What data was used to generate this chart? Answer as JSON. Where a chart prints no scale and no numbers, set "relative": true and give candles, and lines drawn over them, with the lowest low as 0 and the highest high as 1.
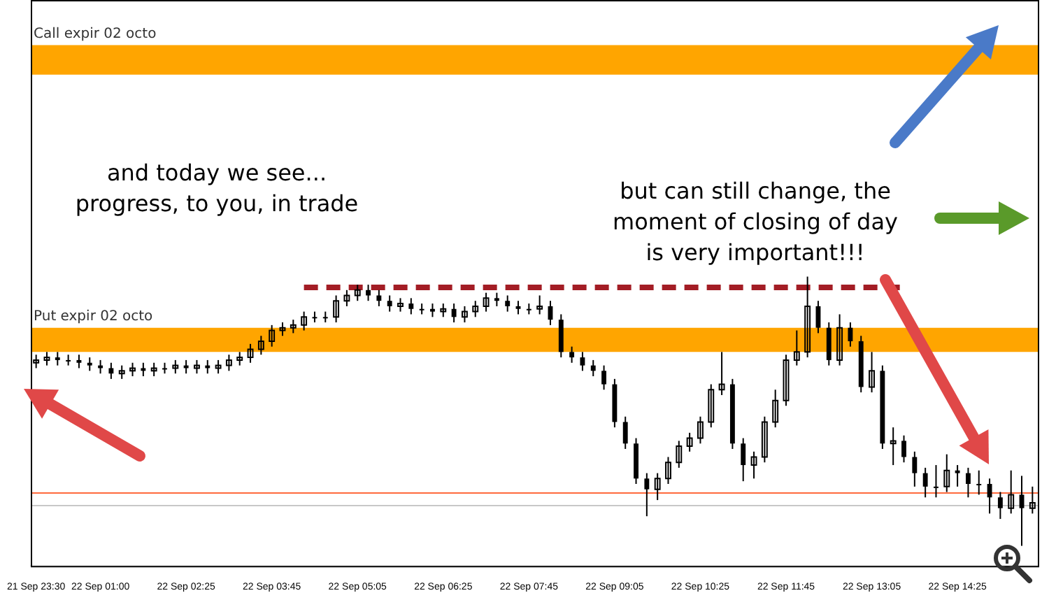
{
  "chart_data": {
    "type": "candlestick",
    "relative": true,
    "color": "#000000",
    "grid": false,
    "legend": false,
    "marker": "none",
    "categories": [
      "21 Sep 23:30",
      null,
      null,
      null,
      null,
      null,
      "22 Sep 01:00",
      null,
      null,
      null,
      null,
      null,
      null,
      null,
      "22 Sep 02:25",
      null,
      null,
      null,
      null,
      null,
      null,
      null,
      "22 Sep 03:45",
      null,
      null,
      null,
      null,
      null,
      null,
      null,
      "22 Sep 05:05",
      null,
      null,
      null,
      null,
      null,
      null,
      null,
      "22 Sep 06:25",
      null,
      null,
      null,
      null,
      null,
      null,
      null,
      "22 Sep 07:45",
      null,
      null,
      null,
      null,
      null,
      null,
      null,
      "22 Sep 09:05",
      null,
      null,
      null,
      null,
      null,
      null,
      null,
      "22 Sep 10:25",
      null,
      null,
      null,
      null,
      null,
      null,
      null,
      "22 Sep 11:45",
      null,
      null,
      null,
      null,
      null,
      null,
      null,
      "22 Sep 13:05",
      null,
      null,
      null,
      null,
      null,
      null,
      null,
      "22 Sep 14:25",
      null,
      null,
      null,
      null,
      null,
      null,
      null
    ],
    "ohlc": [
      [
        0.68,
        0.71,
        0.66,
        0.69
      ],
      [
        0.69,
        0.72,
        0.67,
        0.7
      ],
      [
        0.7,
        0.72,
        0.67,
        0.69
      ],
      [
        0.69,
        0.71,
        0.67,
        0.69
      ],
      [
        0.69,
        0.71,
        0.66,
        0.68
      ],
      [
        0.68,
        0.7,
        0.65,
        0.67
      ],
      [
        0.67,
        0.69,
        0.64,
        0.66
      ],
      [
        0.66,
        0.68,
        0.62,
        0.64
      ],
      [
        0.64,
        0.67,
        0.62,
        0.65
      ],
      [
        0.65,
        0.68,
        0.63,
        0.66
      ],
      [
        0.66,
        0.68,
        0.63,
        0.65
      ],
      [
        0.65,
        0.68,
        0.63,
        0.66
      ],
      [
        0.66,
        0.68,
        0.64,
        0.66
      ],
      [
        0.66,
        0.69,
        0.64,
        0.67
      ],
      [
        0.67,
        0.69,
        0.64,
        0.66
      ],
      [
        0.66,
        0.69,
        0.64,
        0.67
      ],
      [
        0.67,
        0.69,
        0.64,
        0.66
      ],
      [
        0.66,
        0.69,
        0.64,
        0.67
      ],
      [
        0.67,
        0.71,
        0.65,
        0.69
      ],
      [
        0.69,
        0.72,
        0.67,
        0.7
      ],
      [
        0.7,
        0.75,
        0.68,
        0.73
      ],
      [
        0.73,
        0.78,
        0.71,
        0.76
      ],
      [
        0.76,
        0.82,
        0.74,
        0.8
      ],
      [
        0.8,
        0.83,
        0.78,
        0.81
      ],
      [
        0.81,
        0.84,
        0.79,
        0.82
      ],
      [
        0.82,
        0.87,
        0.8,
        0.85
      ],
      [
        0.85,
        0.87,
        0.83,
        0.85
      ],
      [
        0.85,
        0.87,
        0.83,
        0.85
      ],
      [
        0.85,
        0.93,
        0.83,
        0.91
      ],
      [
        0.91,
        0.95,
        0.89,
        0.93
      ],
      [
        0.93,
        0.97,
        0.91,
        0.95
      ],
      [
        0.95,
        0.97,
        0.91,
        0.93
      ],
      [
        0.93,
        0.95,
        0.89,
        0.91
      ],
      [
        0.91,
        0.93,
        0.87,
        0.89
      ],
      [
        0.89,
        0.92,
        0.87,
        0.9
      ],
      [
        0.9,
        0.92,
        0.86,
        0.88
      ],
      [
        0.88,
        0.9,
        0.86,
        0.88
      ],
      [
        0.88,
        0.9,
        0.85,
        0.87
      ],
      [
        0.87,
        0.9,
        0.85,
        0.88
      ],
      [
        0.88,
        0.9,
        0.83,
        0.85
      ],
      [
        0.85,
        0.89,
        0.83,
        0.87
      ],
      [
        0.87,
        0.91,
        0.85,
        0.89
      ],
      [
        0.89,
        0.94,
        0.87,
        0.92
      ],
      [
        0.92,
        0.94,
        0.89,
        0.91
      ],
      [
        0.91,
        0.93,
        0.87,
        0.89
      ],
      [
        0.89,
        0.91,
        0.86,
        0.88
      ],
      [
        0.88,
        0.9,
        0.86,
        0.88
      ],
      [
        0.88,
        0.93,
        0.86,
        0.89
      ],
      [
        0.89,
        0.91,
        0.82,
        0.84
      ],
      [
        0.84,
        0.86,
        0.7,
        0.72
      ],
      [
        0.72,
        0.74,
        0.68,
        0.7
      ],
      [
        0.7,
        0.72,
        0.65,
        0.67
      ],
      [
        0.67,
        0.69,
        0.63,
        0.65
      ],
      [
        0.65,
        0.67,
        0.58,
        0.6
      ],
      [
        0.6,
        0.62,
        0.44,
        0.46
      ],
      [
        0.46,
        0.48,
        0.36,
        0.38
      ],
      [
        0.38,
        0.4,
        0.23,
        0.25
      ],
      [
        0.25,
        0.27,
        0.11,
        0.21
      ],
      [
        0.21,
        0.27,
        0.17,
        0.25
      ],
      [
        0.25,
        0.33,
        0.23,
        0.31
      ],
      [
        0.31,
        0.39,
        0.29,
        0.37
      ],
      [
        0.37,
        0.42,
        0.35,
        0.4
      ],
      [
        0.4,
        0.48,
        0.38,
        0.46
      ],
      [
        0.46,
        0.6,
        0.44,
        0.58
      ],
      [
        0.58,
        0.72,
        0.56,
        0.6
      ],
      [
        0.6,
        0.62,
        0.36,
        0.38
      ],
      [
        0.38,
        0.4,
        0.24,
        0.3
      ],
      [
        0.3,
        0.35,
        0.25,
        0.33
      ],
      [
        0.33,
        0.48,
        0.31,
        0.46
      ],
      [
        0.46,
        0.58,
        0.44,
        0.54
      ],
      [
        0.54,
        0.71,
        0.52,
        0.69
      ],
      [
        0.69,
        0.8,
        0.67,
        0.72
      ],
      [
        0.72,
        1,
        0.7,
        0.89
      ],
      [
        0.89,
        0.91,
        0.79,
        0.81
      ],
      [
        0.81,
        0.83,
        0.67,
        0.69
      ],
      [
        0.69,
        0.86,
        0.67,
        0.81
      ],
      [
        0.81,
        0.83,
        0.74,
        0.76
      ],
      [
        0.76,
        0.78,
        0.57,
        0.59
      ],
      [
        0.59,
        0.72,
        0.57,
        0.65
      ],
      [
        0.65,
        0.67,
        0.36,
        0.38
      ],
      [
        0.38,
        0.44,
        0.3,
        0.39
      ],
      [
        0.39,
        0.41,
        0.31,
        0.33
      ],
      [
        0.33,
        0.35,
        0.22,
        0.27
      ],
      [
        0.27,
        0.29,
        0.18,
        0.22
      ],
      [
        0.22,
        0.3,
        0.18,
        0.22
      ],
      [
        0.22,
        0.34,
        0.2,
        0.28
      ],
      [
        0.28,
        0.3,
        0.22,
        0.27
      ],
      [
        0.27,
        0.29,
        0.18,
        0.23
      ],
      [
        0.23,
        0.28,
        0.19,
        0.23
      ],
      [
        0.23,
        0.25,
        0.12,
        0.18
      ],
      [
        0.18,
        0.2,
        0.1,
        0.14
      ],
      [
        0.14,
        0.28,
        0.12,
        0.19
      ],
      [
        0.19,
        0.26,
        0,
        0.14
      ],
      [
        0.14,
        0.22,
        0.12,
        0.16
      ]
    ],
    "series": [
      {
        "type": "line",
        "color": "#a31d25",
        "line_style": "dashed",
        "values": [
          null,
          null,
          null,
          null,
          null,
          null,
          null,
          null,
          null,
          null,
          null,
          null,
          null,
          null,
          null,
          null,
          null,
          null,
          null,
          null,
          null,
          null,
          null,
          null,
          null,
          0.96,
          0.96,
          0.96,
          0.96,
          0.96,
          0.96,
          0.96,
          0.96,
          0.96,
          0.96,
          0.96,
          0.96,
          0.96,
          0.96,
          0.96,
          0.96,
          0.96,
          0.96,
          0.96,
          0.96,
          0.96,
          0.96,
          0.96,
          0.96,
          0.96,
          0.96,
          0.96,
          0.96,
          0.96,
          0.96,
          0.96,
          0.96,
          0.96,
          0.96,
          0.96,
          0.96,
          0.96,
          0.96,
          0.96,
          0.96,
          0.96,
          0.96,
          0.96,
          0.96,
          0.96,
          0.96,
          0.96,
          0.96,
          0.96,
          0.96,
          0.96,
          0.96,
          0.96,
          0.96,
          0.96,
          0.96,
          0.96,
          null,
          null,
          null,
          null,
          null,
          null,
          null,
          null,
          null,
          null,
          null,
          null
        ]
      }
    ],
    "bands": [
      {
        "axis": "y",
        "from": 1.75,
        "to": 1.86,
        "label": "Call expir 02 octo",
        "color": "#ffa500"
      },
      {
        "axis": "y",
        "from": 0.72,
        "to": 0.81,
        "label": "Put expir 02 octo",
        "color": "#ffa500"
      }
    ],
    "ref_lines": [
      {
        "axis": "y",
        "value": 0.2,
        "color": "#ff6a3d",
        "line_style": "solid"
      },
      {
        "axis": "y",
        "value": 0.15,
        "color": "#c8c8c8",
        "line_style": "solid"
      }
    ],
    "annotations": [
      "and today we see...\nprogress, to you, in trade",
      "but can still change, the\nmoment of closing of day\nis very important!!!"
    ]
  }
}
